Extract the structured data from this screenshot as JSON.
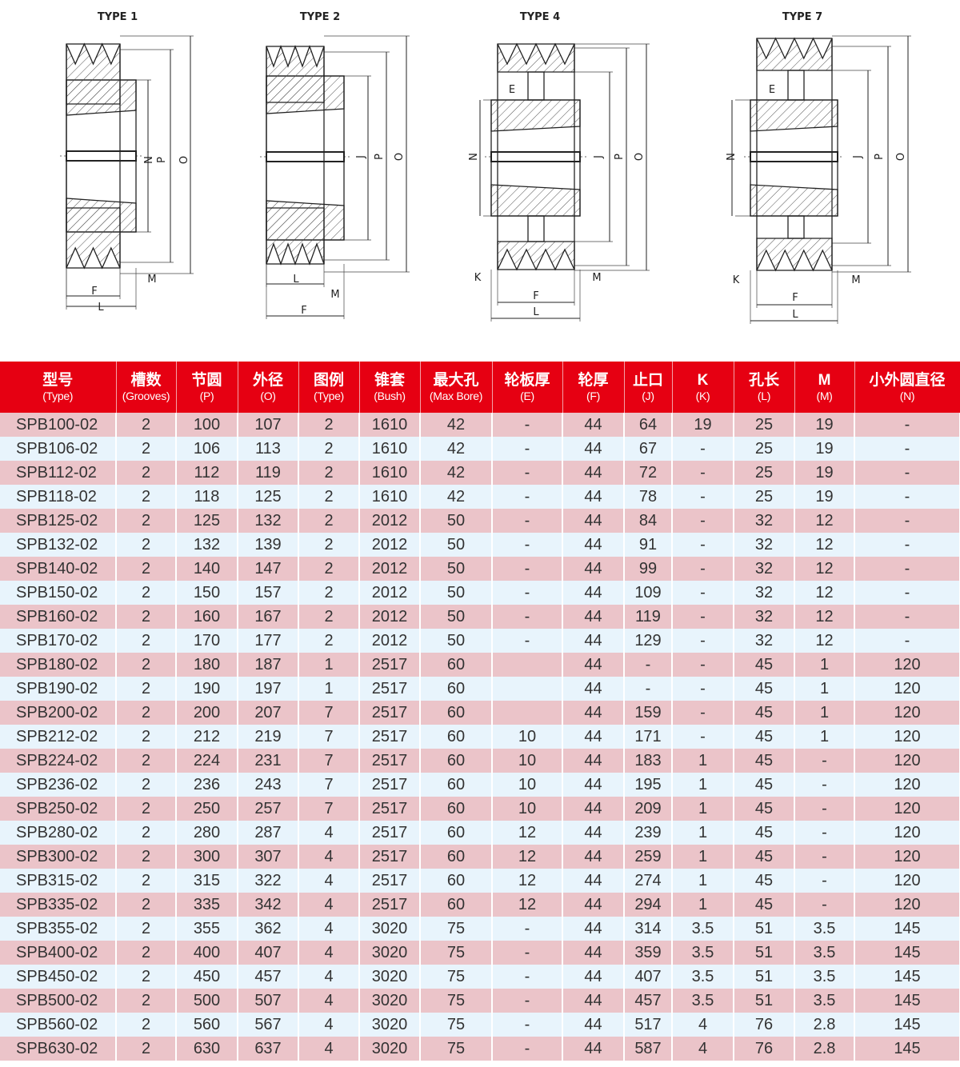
{
  "drawings": [
    {
      "title": "TYPE 1",
      "labels": {
        "N": "N",
        "P": "P",
        "O": "O",
        "F": "F",
        "L": "L",
        "M": "M"
      }
    },
    {
      "title": "TYPE 2",
      "labels": {
        "J": "J",
        "P": "P",
        "O": "O",
        "L": "L",
        "F": "F",
        "M": "M"
      }
    },
    {
      "title": "TYPE 4",
      "labels": {
        "N": "N",
        "J": "J",
        "P": "P",
        "O": "O",
        "E": "E",
        "K": "K",
        "M": "M",
        "F": "F",
        "L": "L"
      }
    },
    {
      "title": "TYPE 7",
      "labels": {
        "N": "N",
        "J": "J",
        "P": "P",
        "O": "O",
        "E": "E",
        "K": "K",
        "M": "M",
        "F": "F",
        "L": "L"
      }
    }
  ],
  "colors": {
    "header": "#e60012",
    "row_odd": "#ebc4c9",
    "row_even": "#e8f4fc"
  },
  "table": {
    "columns": [
      {
        "zh": "型号",
        "en": "(Type)"
      },
      {
        "zh": "槽数",
        "en": "(Grooves)"
      },
      {
        "zh": "节圆",
        "en": "(P)"
      },
      {
        "zh": "外径",
        "en": "(O)"
      },
      {
        "zh": "图例",
        "en": "(Type)"
      },
      {
        "zh": "锥套",
        "en": "(Bush)"
      },
      {
        "zh": "最大孔",
        "en": "(Max Bore)"
      },
      {
        "zh": "轮板厚",
        "en": "(E)"
      },
      {
        "zh": "轮厚",
        "en": "(F)"
      },
      {
        "zh": "止口",
        "en": "(J)"
      },
      {
        "zh": "K",
        "en": "(K)"
      },
      {
        "zh": "孔长",
        "en": "(L)"
      },
      {
        "zh": "M",
        "en": "(M)"
      },
      {
        "zh": "小外圆直径",
        "en": "(N)"
      }
    ],
    "rows": [
      [
        "SPB100-02",
        "2",
        "100",
        "107",
        "2",
        "1610",
        "42",
        "-",
        "44",
        "64",
        "19",
        "25",
        "19",
        "-"
      ],
      [
        "SPB106-02",
        "2",
        "106",
        "113",
        "2",
        "1610",
        "42",
        "-",
        "44",
        "67",
        "-",
        "25",
        "19",
        "-"
      ],
      [
        "SPB112-02",
        "2",
        "112",
        "119",
        "2",
        "1610",
        "42",
        "-",
        "44",
        "72",
        "-",
        "25",
        "19",
        "-"
      ],
      [
        "SPB118-02",
        "2",
        "118",
        "125",
        "2",
        "1610",
        "42",
        "-",
        "44",
        "78",
        "-",
        "25",
        "19",
        "-"
      ],
      [
        "SPB125-02",
        "2",
        "125",
        "132",
        "2",
        "2012",
        "50",
        "-",
        "44",
        "84",
        "-",
        "32",
        "12",
        "-"
      ],
      [
        "SPB132-02",
        "2",
        "132",
        "139",
        "2",
        "2012",
        "50",
        "-",
        "44",
        "91",
        "-",
        "32",
        "12",
        "-"
      ],
      [
        "SPB140-02",
        "2",
        "140",
        "147",
        "2",
        "2012",
        "50",
        "-",
        "44",
        "99",
        "-",
        "32",
        "12",
        "-"
      ],
      [
        "SPB150-02",
        "2",
        "150",
        "157",
        "2",
        "2012",
        "50",
        "-",
        "44",
        "109",
        "-",
        "32",
        "12",
        "-"
      ],
      [
        "SPB160-02",
        "2",
        "160",
        "167",
        "2",
        "2012",
        "50",
        "-",
        "44",
        "119",
        "-",
        "32",
        "12",
        "-"
      ],
      [
        "SPB170-02",
        "2",
        "170",
        "177",
        "2",
        "2012",
        "50",
        "-",
        "44",
        "129",
        "-",
        "32",
        "12",
        "-"
      ],
      [
        "SPB180-02",
        "2",
        "180",
        "187",
        "1",
        "2517",
        "60",
        "",
        "44",
        "-",
        "-",
        "45",
        "1",
        "120"
      ],
      [
        "SPB190-02",
        "2",
        "190",
        "197",
        "1",
        "2517",
        "60",
        "",
        "44",
        "-",
        "-",
        "45",
        "1",
        "120"
      ],
      [
        "SPB200-02",
        "2",
        "200",
        "207",
        "7",
        "2517",
        "60",
        "",
        "44",
        "159",
        "-",
        "45",
        "1",
        "120"
      ],
      [
        "SPB212-02",
        "2",
        "212",
        "219",
        "7",
        "2517",
        "60",
        "10",
        "44",
        "171",
        "-",
        "45",
        "1",
        "120"
      ],
      [
        "SPB224-02",
        "2",
        "224",
        "231",
        "7",
        "2517",
        "60",
        "10",
        "44",
        "183",
        "1",
        "45",
        "-",
        "120"
      ],
      [
        "SPB236-02",
        "2",
        "236",
        "243",
        "7",
        "2517",
        "60",
        "10",
        "44",
        "195",
        "1",
        "45",
        "-",
        "120"
      ],
      [
        "SPB250-02",
        "2",
        "250",
        "257",
        "7",
        "2517",
        "60",
        "10",
        "44",
        "209",
        "1",
        "45",
        "-",
        "120"
      ],
      [
        "SPB280-02",
        "2",
        "280",
        "287",
        "4",
        "2517",
        "60",
        "12",
        "44",
        "239",
        "1",
        "45",
        "-",
        "120"
      ],
      [
        "SPB300-02",
        "2",
        "300",
        "307",
        "4",
        "2517",
        "60",
        "12",
        "44",
        "259",
        "1",
        "45",
        "-",
        "120"
      ],
      [
        "SPB315-02",
        "2",
        "315",
        "322",
        "4",
        "2517",
        "60",
        "12",
        "44",
        "274",
        "1",
        "45",
        "-",
        "120"
      ],
      [
        "SPB335-02",
        "2",
        "335",
        "342",
        "4",
        "2517",
        "60",
        "12",
        "44",
        "294",
        "1",
        "45",
        "-",
        "120"
      ],
      [
        "SPB355-02",
        "2",
        "355",
        "362",
        "4",
        "3020",
        "75",
        "-",
        "44",
        "314",
        "3.5",
        "51",
        "3.5",
        "145"
      ],
      [
        "SPB400-02",
        "2",
        "400",
        "407",
        "4",
        "3020",
        "75",
        "-",
        "44",
        "359",
        "3.5",
        "51",
        "3.5",
        "145"
      ],
      [
        "SPB450-02",
        "2",
        "450",
        "457",
        "4",
        "3020",
        "75",
        "-",
        "44",
        "407",
        "3.5",
        "51",
        "3.5",
        "145"
      ],
      [
        "SPB500-02",
        "2",
        "500",
        "507",
        "4",
        "3020",
        "75",
        "-",
        "44",
        "457",
        "3.5",
        "51",
        "3.5",
        "145"
      ],
      [
        "SPB560-02",
        "2",
        "560",
        "567",
        "4",
        "3020",
        "75",
        "-",
        "44",
        "517",
        "4",
        "76",
        "2.8",
        "145"
      ],
      [
        "SPB630-02",
        "2",
        "630",
        "637",
        "4",
        "3020",
        "75",
        "-",
        "44",
        "587",
        "4",
        "76",
        "2.8",
        "145"
      ]
    ]
  }
}
